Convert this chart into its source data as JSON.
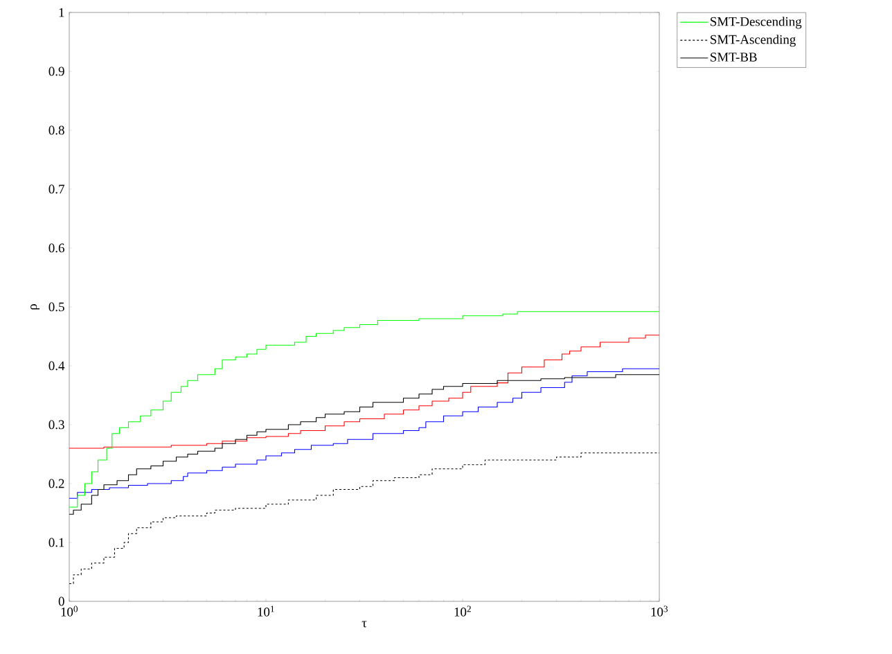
{
  "chart_data": {
    "type": "step",
    "xlabel": "τ",
    "ylabel": "ρ",
    "log": "x",
    "xlim": [
      1,
      1000
    ],
    "ylim": [
      0,
      1
    ],
    "xticks": [
      {
        "value": 1,
        "label": "10$^{0}$"
      },
      {
        "value": 10,
        "label": "10$^{1}$"
      },
      {
        "value": 100,
        "label": "10$^{2}$"
      },
      {
        "value": 1000,
        "label": "10$^{3}$"
      }
    ],
    "yticks": [
      0,
      0.1,
      0.2,
      0.3,
      0.4,
      0.5,
      0.6,
      0.7,
      0.8,
      0.9,
      1
    ],
    "legend": "top right",
    "marker": "none",
    "series": [
      {
        "color": "#0000ff",
        "x": [
          1,
          1.1,
          1.3,
          1.6,
          2,
          2.5,
          3.3,
          3.8,
          4,
          5,
          6,
          7,
          9,
          10,
          12,
          14,
          17,
          22,
          26,
          35,
          50,
          60,
          65,
          80,
          100,
          120,
          150,
          180,
          200,
          250,
          330,
          360,
          430,
          650,
          1000
        ],
        "values": [
          0.175,
          0.185,
          0.19,
          0.193,
          0.197,
          0.2,
          0.205,
          0.212,
          0.218,
          0.222,
          0.228,
          0.233,
          0.24,
          0.247,
          0.252,
          0.258,
          0.265,
          0.268,
          0.275,
          0.285,
          0.29,
          0.295,
          0.305,
          0.315,
          0.322,
          0.33,
          0.338,
          0.345,
          0.355,
          0.363,
          0.372,
          0.383,
          0.39,
          0.395,
          0.395
        ]
      },
      {
        "color": "#ff0000",
        "x": [
          1,
          1.5,
          3.3,
          5,
          6,
          8,
          10,
          13,
          15,
          20,
          25,
          30,
          40,
          50,
          60,
          70,
          85,
          100,
          110,
          150,
          170,
          200,
          260,
          320,
          350,
          400,
          500,
          700,
          850,
          1000
        ],
        "values": [
          0.26,
          0.262,
          0.265,
          0.268,
          0.272,
          0.278,
          0.28,
          0.285,
          0.29,
          0.298,
          0.305,
          0.31,
          0.318,
          0.325,
          0.332,
          0.34,
          0.345,
          0.355,
          0.365,
          0.371,
          0.388,
          0.398,
          0.41,
          0.42,
          0.425,
          0.432,
          0.44,
          0.447,
          0.452,
          0.452
        ]
      },
      {
        "name": "SMT-Descending",
        "color": "#00ff00",
        "x": [
          1,
          1.1,
          1.2,
          1.3,
          1.4,
          1.55,
          1.65,
          1.8,
          2,
          2.3,
          2.6,
          3,
          3.3,
          3.7,
          4,
          4.5,
          5.5,
          6,
          7,
          8,
          9,
          10,
          14,
          16,
          18,
          22,
          25,
          30,
          37,
          60,
          100,
          160,
          190,
          1000
        ],
        "values": [
          0.16,
          0.18,
          0.2,
          0.22,
          0.24,
          0.26,
          0.285,
          0.295,
          0.305,
          0.315,
          0.325,
          0.34,
          0.355,
          0.365,
          0.375,
          0.385,
          0.395,
          0.41,
          0.415,
          0.42,
          0.428,
          0.435,
          0.44,
          0.45,
          0.455,
          0.46,
          0.465,
          0.47,
          0.477,
          0.48,
          0.485,
          0.488,
          0.492,
          0.492
        ]
      },
      {
        "name": "SMT-Ascending",
        "color": "#000000",
        "line_style": "dashed",
        "x": [
          1,
          1.05,
          1.15,
          1.3,
          1.5,
          1.7,
          1.9,
          2,
          2.2,
          2.6,
          3,
          3.5,
          5,
          5.5,
          7,
          10,
          13,
          18,
          22,
          30,
          35,
          45,
          60,
          70,
          100,
          130,
          300,
          400,
          1000
        ],
        "values": [
          0.03,
          0.045,
          0.055,
          0.065,
          0.075,
          0.09,
          0.1,
          0.115,
          0.125,
          0.135,
          0.142,
          0.145,
          0.15,
          0.155,
          0.158,
          0.165,
          0.172,
          0.18,
          0.19,
          0.195,
          0.205,
          0.21,
          0.215,
          0.225,
          0.232,
          0.24,
          0.245,
          0.252,
          0.252
        ]
      },
      {
        "name": "SMT-BB",
        "color": "#000000",
        "x": [
          1,
          1.05,
          1.15,
          1.3,
          1.4,
          1.5,
          1.75,
          2,
          2.2,
          2.6,
          3,
          3.5,
          4,
          4.5,
          5.5,
          6,
          7,
          8,
          9,
          10,
          13,
          15,
          18,
          20,
          25,
          30,
          35,
          50,
          60,
          70,
          80,
          100,
          150,
          250,
          330,
          600,
          1000
        ],
        "values": [
          0.148,
          0.155,
          0.165,
          0.18,
          0.19,
          0.198,
          0.205,
          0.215,
          0.225,
          0.23,
          0.238,
          0.245,
          0.25,
          0.255,
          0.26,
          0.268,
          0.275,
          0.282,
          0.288,
          0.292,
          0.3,
          0.305,
          0.312,
          0.318,
          0.322,
          0.33,
          0.338,
          0.345,
          0.352,
          0.36,
          0.365,
          0.37,
          0.375,
          0.378,
          0.38,
          0.385,
          0.385
        ]
      }
    ]
  }
}
